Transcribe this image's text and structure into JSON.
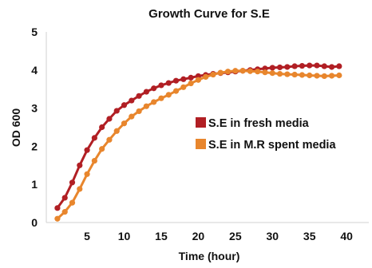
{
  "chart_data": {
    "type": "line",
    "title": "Growth Curve for S.E",
    "xlabel": "Time (hour)",
    "ylabel": "OD 600",
    "xlim": [
      -0.5,
      43
    ],
    "ylim": [
      0,
      5
    ],
    "xticks": [
      5,
      10,
      15,
      20,
      25,
      30,
      35,
      40
    ],
    "yticks": [
      0,
      1,
      2,
      3,
      4,
      5
    ],
    "grid": false,
    "legend_position": "right-center",
    "series": [
      {
        "name": "S.E in fresh media",
        "color": "#b11f24",
        "x": [
          1,
          2,
          3,
          4,
          5,
          6,
          7,
          8,
          9,
          10,
          11,
          12,
          13,
          14,
          15,
          16,
          17,
          18,
          19,
          20,
          21,
          22,
          23,
          24,
          25,
          26,
          27,
          28,
          29,
          30,
          31,
          32,
          33,
          34,
          35,
          36,
          37,
          38,
          39
        ],
        "y": [
          0.38,
          0.65,
          1.05,
          1.5,
          1.9,
          2.22,
          2.5,
          2.72,
          2.93,
          3.08,
          3.2,
          3.32,
          3.43,
          3.52,
          3.6,
          3.66,
          3.72,
          3.76,
          3.8,
          3.84,
          3.87,
          3.9,
          3.92,
          3.94,
          3.96,
          3.98,
          4.0,
          4.02,
          4.04,
          4.06,
          4.07,
          4.08,
          4.1,
          4.11,
          4.12,
          4.12,
          4.1,
          4.08,
          4.1
        ]
      },
      {
        "name": "S.E in M.R spent media",
        "color": "#e8862d",
        "x": [
          1,
          2,
          3,
          4,
          5,
          6,
          7,
          8,
          9,
          10,
          11,
          12,
          13,
          14,
          15,
          16,
          17,
          18,
          19,
          20,
          21,
          22,
          23,
          24,
          25,
          26,
          27,
          28,
          29,
          30,
          31,
          32,
          33,
          34,
          35,
          36,
          37,
          38,
          39
        ],
        "y": [
          0.1,
          0.28,
          0.52,
          0.88,
          1.27,
          1.62,
          1.93,
          2.17,
          2.4,
          2.6,
          2.78,
          2.92,
          3.05,
          3.16,
          3.26,
          3.35,
          3.45,
          3.55,
          3.65,
          3.74,
          3.82,
          3.88,
          3.93,
          3.96,
          3.98,
          3.98,
          3.97,
          3.96,
          3.94,
          3.92,
          3.9,
          3.89,
          3.88,
          3.87,
          3.86,
          3.85,
          3.84,
          3.85,
          3.86
        ]
      }
    ]
  }
}
